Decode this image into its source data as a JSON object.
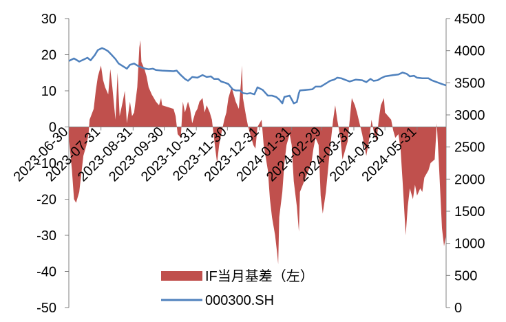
{
  "chart_data": {
    "type": "area",
    "title": "",
    "colors": {
      "basis": "#C0504D",
      "index": "#4F81BD"
    },
    "left_axis": {
      "ylim": [
        -50,
        30
      ],
      "ticks": [
        -50,
        -40,
        -30,
        -20,
        -10,
        0,
        10,
        20,
        30
      ]
    },
    "right_axis": {
      "ylim": [
        0,
        4500
      ],
      "ticks": [
        0,
        500,
        1000,
        1500,
        2000,
        2500,
        3000,
        3500,
        4000,
        4500
      ]
    },
    "x_tick_labels": [
      "2023-06-30",
      "2023-07-31",
      "2023-08-31",
      "2023-09-30",
      "2023-10-31",
      "2023-11-30",
      "2023-12-31",
      "2024-01-31",
      "2024-02-29",
      "2024-03-31",
      "2024-04-30",
      "2024-05-31"
    ],
    "x_start": "2023-06-30",
    "x_end": "2024-06-28",
    "legend": {
      "position": "bottom-center"
    },
    "series": [
      {
        "name": "IF当月基差（左）",
        "type": "area",
        "axis": "left",
        "points": [
          [
            "2023-06-30",
            -3
          ],
          [
            "2023-07-03",
            -12
          ],
          [
            "2023-07-05",
            -20
          ],
          [
            "2023-07-07",
            -21
          ],
          [
            "2023-07-10",
            -18
          ],
          [
            "2023-07-12",
            -13
          ],
          [
            "2023-07-14",
            -8
          ],
          [
            "2023-07-17",
            -5
          ],
          [
            "2023-07-19",
            -2
          ],
          [
            "2023-07-20",
            2
          ],
          [
            "2023-07-24",
            5
          ],
          [
            "2023-07-26",
            10
          ],
          [
            "2023-07-28",
            14
          ],
          [
            "2023-07-31",
            17
          ],
          [
            "2023-08-02",
            13
          ],
          [
            "2023-08-04",
            11
          ],
          [
            "2023-08-07",
            9
          ],
          [
            "2023-08-09",
            16
          ],
          [
            "2023-08-11",
            11
          ],
          [
            "2023-08-14",
            2
          ],
          [
            "2023-08-16",
            15
          ],
          [
            "2023-08-18",
            3
          ],
          [
            "2023-08-21",
            7
          ],
          [
            "2023-08-23",
            10
          ],
          [
            "2023-08-25",
            1
          ],
          [
            "2023-08-28",
            7
          ],
          [
            "2023-08-30",
            3
          ],
          [
            "2023-09-01",
            4
          ],
          [
            "2023-09-04",
            11
          ],
          [
            "2023-09-06",
            22
          ],
          [
            "2023-09-07",
            24
          ],
          [
            "2023-09-08",
            18
          ],
          [
            "2023-09-11",
            16
          ],
          [
            "2023-09-13",
            14
          ],
          [
            "2023-09-15",
            11
          ],
          [
            "2023-09-18",
            9
          ],
          [
            "2023-09-20",
            8
          ],
          [
            "2023-09-22",
            7
          ],
          [
            "2023-09-25",
            6
          ],
          [
            "2023-09-27",
            8
          ],
          [
            "2023-09-28",
            6
          ],
          [
            "2023-10-09",
            5
          ],
          [
            "2023-10-11",
            3
          ],
          [
            "2023-10-13",
            -2
          ],
          [
            "2023-10-16",
            -3
          ],
          [
            "2023-10-18",
            7
          ],
          [
            "2023-10-20",
            4
          ],
          [
            "2023-10-23",
            7
          ],
          [
            "2023-10-25",
            5
          ],
          [
            "2023-10-27",
            1
          ],
          [
            "2023-10-30",
            4
          ],
          [
            "2023-11-01",
            5
          ],
          [
            "2023-11-03",
            7
          ],
          [
            "2023-11-06",
            8
          ],
          [
            "2023-11-08",
            4
          ],
          [
            "2023-11-10",
            6
          ],
          [
            "2023-11-13",
            4
          ],
          [
            "2023-11-15",
            2
          ],
          [
            "2023-11-17",
            -3
          ],
          [
            "2023-11-20",
            -10
          ],
          [
            "2023-11-22",
            -5
          ],
          [
            "2023-11-24",
            -2
          ],
          [
            "2023-11-27",
            2
          ],
          [
            "2023-11-29",
            4
          ],
          [
            "2023-12-01",
            8
          ],
          [
            "2023-12-04",
            11
          ],
          [
            "2023-12-06",
            9
          ],
          [
            "2023-12-08",
            7
          ],
          [
            "2023-12-11",
            5
          ],
          [
            "2023-12-13",
            12
          ],
          [
            "2023-12-14",
            17
          ],
          [
            "2023-12-15",
            8
          ],
          [
            "2023-12-18",
            3
          ],
          [
            "2023-12-20",
            0
          ],
          [
            "2023-12-22",
            -2
          ],
          [
            "2023-12-25",
            -5
          ],
          [
            "2023-12-27",
            -6
          ],
          [
            "2023-12-29",
            0
          ],
          [
            "2024-01-02",
            2
          ],
          [
            "2024-01-04",
            -5
          ],
          [
            "2024-01-08",
            -12
          ],
          [
            "2024-01-10",
            -20
          ],
          [
            "2024-01-12",
            -25
          ],
          [
            "2024-01-15",
            -30
          ],
          [
            "2024-01-17",
            -35
          ],
          [
            "2024-01-18",
            -38
          ],
          [
            "2024-01-19",
            -25
          ],
          [
            "2024-01-22",
            -18
          ],
          [
            "2024-01-24",
            -10
          ],
          [
            "2024-01-26",
            -5
          ],
          [
            "2024-01-29",
            -2
          ],
          [
            "2024-01-31",
            -5
          ],
          [
            "2024-02-02",
            -15
          ],
          [
            "2024-02-05",
            -22
          ],
          [
            "2024-02-07",
            -29
          ],
          [
            "2024-02-08",
            -18
          ],
          [
            "2024-02-19",
            -10
          ],
          [
            "2024-02-21",
            -6
          ],
          [
            "2024-02-23",
            -3
          ],
          [
            "2024-02-26",
            -5
          ],
          [
            "2024-02-28",
            -19
          ],
          [
            "2024-03-01",
            -24
          ],
          [
            "2024-03-04",
            -18
          ],
          [
            "2024-03-06",
            -12
          ],
          [
            "2024-03-08",
            -6
          ],
          [
            "2024-03-11",
            2
          ],
          [
            "2024-03-13",
            6
          ],
          [
            "2024-03-15",
            2
          ],
          [
            "2024-03-18",
            -3
          ],
          [
            "2024-03-20",
            -9
          ],
          [
            "2024-03-22",
            -7
          ],
          [
            "2024-03-25",
            -4
          ],
          [
            "2024-03-27",
            2
          ],
          [
            "2024-03-29",
            8
          ],
          [
            "2024-04-01",
            6
          ],
          [
            "2024-04-03",
            4
          ],
          [
            "2024-04-08",
            -2
          ],
          [
            "2024-04-10",
            -5
          ],
          [
            "2024-04-12",
            -8
          ],
          [
            "2024-04-15",
            -3
          ],
          [
            "2024-04-17",
            2
          ],
          [
            "2024-04-19",
            -1
          ],
          [
            "2024-04-22",
            -4
          ],
          [
            "2024-04-24",
            2
          ],
          [
            "2024-04-26",
            6
          ],
          [
            "2024-04-29",
            8
          ],
          [
            "2024-04-30",
            4
          ],
          [
            "2024-05-06",
            2
          ],
          [
            "2024-05-08",
            -1
          ],
          [
            "2024-05-10",
            -3
          ],
          [
            "2024-05-13",
            -2
          ],
          [
            "2024-05-15",
            -6
          ],
          [
            "2024-05-17",
            -15
          ],
          [
            "2024-05-20",
            -30
          ],
          [
            "2024-05-22",
            -22
          ],
          [
            "2024-05-24",
            -17
          ],
          [
            "2024-05-27",
            -20
          ],
          [
            "2024-05-29",
            -16
          ],
          [
            "2024-05-31",
            -19
          ],
          [
            "2024-06-03",
            -17
          ],
          [
            "2024-06-05",
            -18
          ],
          [
            "2024-06-07",
            -14
          ],
          [
            "2024-06-11",
            -12
          ],
          [
            "2024-06-13",
            -10
          ],
          [
            "2024-06-17",
            -9
          ],
          [
            "2024-06-19",
            1
          ],
          [
            "2024-06-21",
            -10
          ],
          [
            "2024-06-24",
            -28
          ],
          [
            "2024-06-26",
            -33
          ],
          [
            "2024-06-28",
            -30
          ]
        ]
      },
      {
        "name": "000300.SH",
        "type": "line",
        "axis": "right",
        "points": [
          [
            "2023-06-30",
            3840
          ],
          [
            "2023-07-05",
            3880
          ],
          [
            "2023-07-10",
            3830
          ],
          [
            "2023-07-14",
            3860
          ],
          [
            "2023-07-18",
            3890
          ],
          [
            "2023-07-21",
            3850
          ],
          [
            "2023-07-25",
            3930
          ],
          [
            "2023-07-28",
            4010
          ],
          [
            "2023-08-01",
            4040
          ],
          [
            "2023-08-04",
            4020
          ],
          [
            "2023-08-07",
            3990
          ],
          [
            "2023-08-10",
            3940
          ],
          [
            "2023-08-14",
            3870
          ],
          [
            "2023-08-17",
            3800
          ],
          [
            "2023-08-21",
            3760
          ],
          [
            "2023-08-25",
            3720
          ],
          [
            "2023-08-28",
            3780
          ],
          [
            "2023-09-01",
            3800
          ],
          [
            "2023-09-05",
            3760
          ],
          [
            "2023-09-08",
            3740
          ],
          [
            "2023-09-12",
            3720
          ],
          [
            "2023-09-15",
            3710
          ],
          [
            "2023-09-19",
            3720
          ],
          [
            "2023-09-22",
            3700
          ],
          [
            "2023-09-28",
            3690
          ],
          [
            "2023-10-09",
            3680
          ],
          [
            "2023-10-12",
            3690
          ],
          [
            "2023-10-16",
            3620
          ],
          [
            "2023-10-20",
            3560
          ],
          [
            "2023-10-23",
            3530
          ],
          [
            "2023-10-27",
            3590
          ],
          [
            "2023-11-01",
            3580
          ],
          [
            "2023-11-06",
            3620
          ],
          [
            "2023-11-10",
            3590
          ],
          [
            "2023-11-14",
            3600
          ],
          [
            "2023-11-17",
            3560
          ],
          [
            "2023-11-21",
            3560
          ],
          [
            "2023-11-24",
            3520
          ],
          [
            "2023-11-28",
            3500
          ],
          [
            "2023-12-01",
            3480
          ],
          [
            "2023-12-05",
            3400
          ],
          [
            "2023-12-08",
            3380
          ],
          [
            "2023-12-12",
            3380
          ],
          [
            "2023-12-15",
            3340
          ],
          [
            "2023-12-19",
            3330
          ],
          [
            "2023-12-22",
            3340
          ],
          [
            "2023-12-26",
            3320
          ],
          [
            "2023-12-29",
            3430
          ],
          [
            "2024-01-03",
            3390
          ],
          [
            "2024-01-08",
            3300
          ],
          [
            "2024-01-12",
            3300
          ],
          [
            "2024-01-16",
            3280
          ],
          [
            "2024-01-19",
            3240
          ],
          [
            "2024-01-22",
            3180
          ],
          [
            "2024-01-24",
            3280
          ],
          [
            "2024-01-29",
            3300
          ],
          [
            "2024-02-02",
            3180
          ],
          [
            "2024-02-05",
            3200
          ],
          [
            "2024-02-07",
            3340
          ],
          [
            "2024-02-08",
            3380
          ],
          [
            "2024-02-20",
            3400
          ],
          [
            "2024-02-23",
            3440
          ],
          [
            "2024-02-28",
            3440
          ],
          [
            "2024-03-04",
            3490
          ],
          [
            "2024-03-08",
            3530
          ],
          [
            "2024-03-12",
            3550
          ],
          [
            "2024-03-15",
            3580
          ],
          [
            "2024-03-19",
            3570
          ],
          [
            "2024-03-22",
            3550
          ],
          [
            "2024-03-27",
            3520
          ],
          [
            "2024-03-29",
            3530
          ],
          [
            "2024-04-02",
            3550
          ],
          [
            "2024-04-08",
            3540
          ],
          [
            "2024-04-12",
            3510
          ],
          [
            "2024-04-16",
            3560
          ],
          [
            "2024-04-19",
            3530
          ],
          [
            "2024-04-23",
            3540
          ],
          [
            "2024-04-26",
            3570
          ],
          [
            "2024-04-30",
            3600
          ],
          [
            "2024-05-08",
            3620
          ],
          [
            "2024-05-13",
            3630
          ],
          [
            "2024-05-17",
            3660
          ],
          [
            "2024-05-21",
            3640
          ],
          [
            "2024-05-24",
            3600
          ],
          [
            "2024-05-28",
            3610
          ],
          [
            "2024-05-31",
            3580
          ],
          [
            "2024-06-05",
            3570
          ],
          [
            "2024-06-11",
            3570
          ],
          [
            "2024-06-14",
            3540
          ],
          [
            "2024-06-19",
            3510
          ],
          [
            "2024-06-24",
            3480
          ],
          [
            "2024-06-28",
            3460
          ]
        ]
      }
    ]
  }
}
